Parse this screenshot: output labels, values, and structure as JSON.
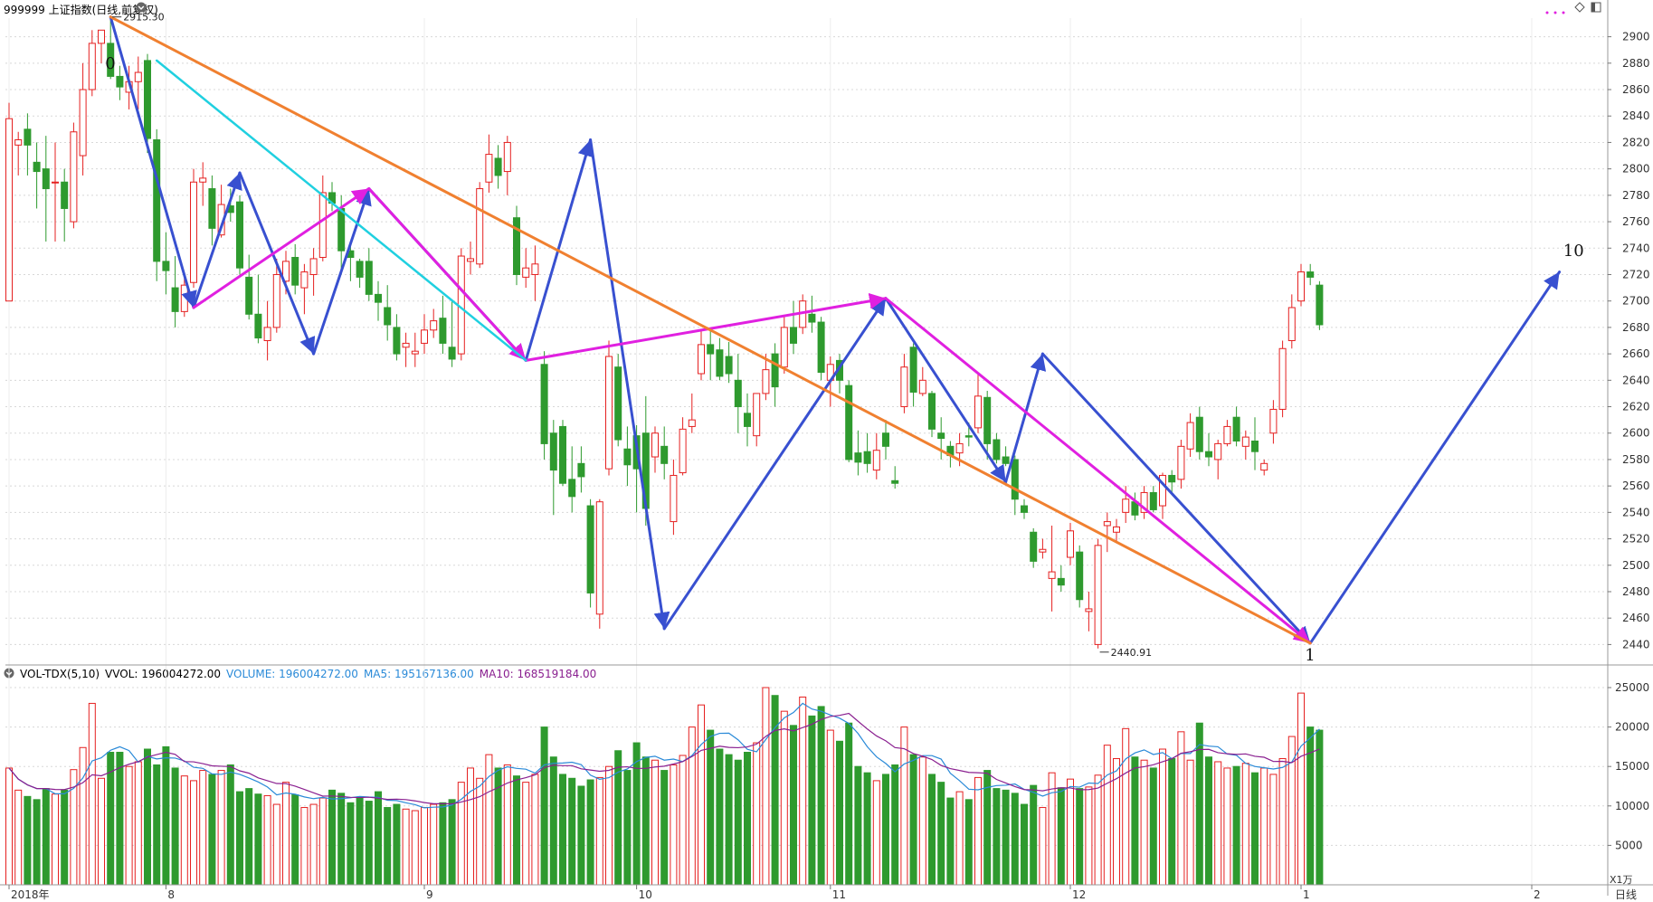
{
  "header": {
    "title": "999999 上证指数(日线,前复权)",
    "high_label": "2915.30",
    "low_label": "2440.91",
    "vol_indicator": "VOL-TDX(5,10)",
    "vvol": "VVOL: 196004272.00",
    "volume": "VOLUME: 196004272.00",
    "ma5": "MA5: 195167136.00",
    "ma10": "MA10: 168519184.00",
    "unit": "X1万",
    "period": "日线"
  },
  "colors": {
    "up": "#e52020",
    "down": "#2e9a2e",
    "wave_blue": "#3850d0",
    "wave_magenta": "#e020e0",
    "trend_cyan": "#20d0e0",
    "trend_orange": "#f08030",
    "ma5": "#2a8ad8",
    "ma10": "#8a2090"
  },
  "chart_data": {
    "type": "candlestick",
    "price_ylim": [
      2430,
      2910
    ],
    "price_ticks": [
      2440,
      2460,
      2480,
      2500,
      2520,
      2540,
      2560,
      2580,
      2600,
      2620,
      2640,
      2660,
      2680,
      2700,
      2720,
      2740,
      2760,
      2780,
      2800,
      2820,
      2840,
      2860,
      2880,
      2900
    ],
    "volume_ylim": [
      0,
      25000
    ],
    "volume_ticks": [
      5000,
      10000,
      15000,
      20000,
      25000
    ],
    "x_labels": [
      {
        "label": "2018年",
        "index": 0
      },
      {
        "label": "8",
        "index": 17
      },
      {
        "label": "9",
        "index": 45
      },
      {
        "label": "10",
        "index": 68
      },
      {
        "label": "11",
        "index": 89
      },
      {
        "label": "12",
        "index": 115
      },
      {
        "label": "1",
        "index": 140
      },
      {
        "label": "2",
        "index": 165
      }
    ],
    "candles": [
      {
        "o": 2700,
        "h": 2850,
        "l": 2700,
        "c": 2838,
        "v": 14800
      },
      {
        "o": 2818,
        "h": 2828,
        "l": 2795,
        "c": 2822,
        "v": 12000
      },
      {
        "o": 2830,
        "h": 2842,
        "l": 2795,
        "c": 2818,
        "v": 11200
      },
      {
        "o": 2805,
        "h": 2820,
        "l": 2770,
        "c": 2798,
        "v": 10800
      },
      {
        "o": 2800,
        "h": 2825,
        "l": 2745,
        "c": 2785,
        "v": 12200
      },
      {
        "o": 2790,
        "h": 2820,
        "l": 2745,
        "c": 2790,
        "v": 11500
      },
      {
        "o": 2790,
        "h": 2800,
        "l": 2745,
        "c": 2770,
        "v": 12000
      },
      {
        "o": 2760,
        "h": 2835,
        "l": 2755,
        "c": 2828,
        "v": 14600
      },
      {
        "o": 2810,
        "h": 2880,
        "l": 2795,
        "c": 2860,
        "v": 17400
      },
      {
        "o": 2860,
        "h": 2905,
        "l": 2855,
        "c": 2895,
        "v": 23000
      },
      {
        "o": 2895,
        "h": 2905,
        "l": 2880,
        "c": 2905,
        "v": 13500
      },
      {
        "o": 2895,
        "h": 2915,
        "l": 2868,
        "c": 2870,
        "v": 16800
      },
      {
        "o": 2870,
        "h": 2878,
        "l": 2852,
        "c": 2862,
        "v": 16800
      },
      {
        "o": 2858,
        "h": 2878,
        "l": 2845,
        "c": 2866,
        "v": 15000
      },
      {
        "o": 2866,
        "h": 2885,
        "l": 2845,
        "c": 2873,
        "v": 15600
      },
      {
        "o": 2882,
        "h": 2887,
        "l": 2812,
        "c": 2823,
        "v": 17200
      },
      {
        "o": 2822,
        "h": 2830,
        "l": 2715,
        "c": 2730,
        "v": 15200
      },
      {
        "o": 2730,
        "h": 2752,
        "l": 2705,
        "c": 2723,
        "v": 17500
      },
      {
        "o": 2710,
        "h": 2734,
        "l": 2680,
        "c": 2692,
        "v": 14800
      },
      {
        "o": 2692,
        "h": 2718,
        "l": 2688,
        "c": 2712,
        "v": 13800
      },
      {
        "o": 2714,
        "h": 2800,
        "l": 2710,
        "c": 2790,
        "v": 13200
      },
      {
        "o": 2790,
        "h": 2805,
        "l": 2772,
        "c": 2793,
        "v": 14500
      },
      {
        "o": 2785,
        "h": 2795,
        "l": 2742,
        "c": 2755,
        "v": 14000
      },
      {
        "o": 2750,
        "h": 2788,
        "l": 2748,
        "c": 2773,
        "v": 14500
      },
      {
        "o": 2772,
        "h": 2785,
        "l": 2760,
        "c": 2767,
        "v": 15200
      },
      {
        "o": 2775,
        "h": 2780,
        "l": 2720,
        "c": 2725,
        "v": 11800
      },
      {
        "o": 2718,
        "h": 2735,
        "l": 2686,
        "c": 2690,
        "v": 12200
      },
      {
        "o": 2690,
        "h": 2720,
        "l": 2668,
        "c": 2672,
        "v": 11500
      },
      {
        "o": 2670,
        "h": 2700,
        "l": 2655,
        "c": 2680,
        "v": 11300
      },
      {
        "o": 2680,
        "h": 2732,
        "l": 2676,
        "c": 2720,
        "v": 10200
      },
      {
        "o": 2715,
        "h": 2738,
        "l": 2705,
        "c": 2730,
        "v": 13000
      },
      {
        "o": 2733,
        "h": 2743,
        "l": 2705,
        "c": 2712,
        "v": 11400
      },
      {
        "o": 2710,
        "h": 2728,
        "l": 2690,
        "c": 2722,
        "v": 9800
      },
      {
        "o": 2720,
        "h": 2740,
        "l": 2704,
        "c": 2732,
        "v": 10200
      },
      {
        "o": 2733,
        "h": 2795,
        "l": 2730,
        "c": 2782,
        "v": 11000
      },
      {
        "o": 2782,
        "h": 2790,
        "l": 2768,
        "c": 2774,
        "v": 12000
      },
      {
        "o": 2770,
        "h": 2780,
        "l": 2720,
        "c": 2738,
        "v": 11600
      },
      {
        "o": 2738,
        "h": 2742,
        "l": 2715,
        "c": 2733,
        "v": 10400
      },
      {
        "o": 2730,
        "h": 2732,
        "l": 2710,
        "c": 2718,
        "v": 11000
      },
      {
        "o": 2730,
        "h": 2740,
        "l": 2700,
        "c": 2705,
        "v": 10600
      },
      {
        "o": 2705,
        "h": 2715,
        "l": 2685,
        "c": 2699,
        "v": 11800
      },
      {
        "o": 2695,
        "h": 2712,
        "l": 2670,
        "c": 2682,
        "v": 9800
      },
      {
        "o": 2680,
        "h": 2690,
        "l": 2655,
        "c": 2660,
        "v": 10200
      },
      {
        "o": 2665,
        "h": 2676,
        "l": 2650,
        "c": 2668,
        "v": 9600
      },
      {
        "o": 2660,
        "h": 2676,
        "l": 2650,
        "c": 2662,
        "v": 9400
      },
      {
        "o": 2668,
        "h": 2690,
        "l": 2660,
        "c": 2678,
        "v": 9800
      },
      {
        "o": 2678,
        "h": 2694,
        "l": 2672,
        "c": 2685,
        "v": 10200
      },
      {
        "o": 2687,
        "h": 2704,
        "l": 2660,
        "c": 2668,
        "v": 10400
      },
      {
        "o": 2665,
        "h": 2700,
        "l": 2650,
        "c": 2656,
        "v": 10800
      },
      {
        "o": 2660,
        "h": 2740,
        "l": 2655,
        "c": 2734,
        "v": 13000
      },
      {
        "o": 2730,
        "h": 2745,
        "l": 2720,
        "c": 2732,
        "v": 14800
      },
      {
        "o": 2728,
        "h": 2790,
        "l": 2725,
        "c": 2785,
        "v": 13500
      },
      {
        "o": 2790,
        "h": 2826,
        "l": 2782,
        "c": 2811,
        "v": 16500
      },
      {
        "o": 2808,
        "h": 2818,
        "l": 2785,
        "c": 2795,
        "v": 14800
      },
      {
        "o": 2798,
        "h": 2825,
        "l": 2780,
        "c": 2820,
        "v": 15200
      },
      {
        "o": 2763,
        "h": 2772,
        "l": 2712,
        "c": 2720,
        "v": 13800
      },
      {
        "o": 2718,
        "h": 2740,
        "l": 2710,
        "c": 2725,
        "v": 13000
      },
      {
        "o": 2720,
        "h": 2742,
        "l": 2700,
        "c": 2728,
        "v": 14000
      },
      {
        "o": 2652,
        "h": 2662,
        "l": 2580,
        "c": 2592,
        "v": 20000
      },
      {
        "o": 2600,
        "h": 2610,
        "l": 2538,
        "c": 2572,
        "v": 16200
      },
      {
        "o": 2605,
        "h": 2610,
        "l": 2560,
        "c": 2562,
        "v": 14000
      },
      {
        "o": 2565,
        "h": 2590,
        "l": 2540,
        "c": 2552,
        "v": 13500
      },
      {
        "o": 2577,
        "h": 2590,
        "l": 2555,
        "c": 2567,
        "v": 12500
      },
      {
        "o": 2545,
        "h": 2550,
        "l": 2468,
        "c": 2479,
        "v": 13300
      },
      {
        "o": 2463,
        "h": 2550,
        "l": 2452,
        "c": 2548,
        "v": 13600
      },
      {
        "o": 2573,
        "h": 2670,
        "l": 2568,
        "c": 2658,
        "v": 15000
      },
      {
        "o": 2650,
        "h": 2660,
        "l": 2590,
        "c": 2595,
        "v": 17000
      },
      {
        "o": 2588,
        "h": 2605,
        "l": 2560,
        "c": 2576,
        "v": 14500
      },
      {
        "o": 2598,
        "h": 2606,
        "l": 2540,
        "c": 2573,
        "v": 18000
      },
      {
        "o": 2600,
        "h": 2628,
        "l": 2530,
        "c": 2543,
        "v": 16200
      },
      {
        "o": 2582,
        "h": 2605,
        "l": 2570,
        "c": 2600,
        "v": 15800
      },
      {
        "o": 2590,
        "h": 2605,
        "l": 2565,
        "c": 2577,
        "v": 14500
      },
      {
        "o": 2533,
        "h": 2580,
        "l": 2523,
        "c": 2568,
        "v": 15200
      },
      {
        "o": 2570,
        "h": 2612,
        "l": 2568,
        "c": 2603,
        "v": 16400
      },
      {
        "o": 2605,
        "h": 2630,
        "l": 2600,
        "c": 2610,
        "v": 20000
      },
      {
        "o": 2645,
        "h": 2678,
        "l": 2640,
        "c": 2667,
        "v": 22800
      },
      {
        "o": 2667,
        "h": 2678,
        "l": 2640,
        "c": 2660,
        "v": 19600
      },
      {
        "o": 2663,
        "h": 2672,
        "l": 2640,
        "c": 2643,
        "v": 17200
      },
      {
        "o": 2658,
        "h": 2669,
        "l": 2638,
        "c": 2645,
        "v": 16500
      },
      {
        "o": 2640,
        "h": 2660,
        "l": 2600,
        "c": 2620,
        "v": 15800
      },
      {
        "o": 2615,
        "h": 2630,
        "l": 2590,
        "c": 2605,
        "v": 16800
      },
      {
        "o": 2598,
        "h": 2630,
        "l": 2590,
        "c": 2630,
        "v": 18000
      },
      {
        "o": 2630,
        "h": 2660,
        "l": 2625,
        "c": 2648,
        "v": 25000
      },
      {
        "o": 2660,
        "h": 2668,
        "l": 2620,
        "c": 2635,
        "v": 24000
      },
      {
        "o": 2650,
        "h": 2688,
        "l": 2645,
        "c": 2680,
        "v": 22000
      },
      {
        "o": 2680,
        "h": 2700,
        "l": 2660,
        "c": 2668,
        "v": 20200
      },
      {
        "o": 2680,
        "h": 2705,
        "l": 2675,
        "c": 2700,
        "v": 23800
      },
      {
        "o": 2690,
        "h": 2704,
        "l": 2676,
        "c": 2684,
        "v": 21400
      },
      {
        "o": 2684,
        "h": 2688,
        "l": 2640,
        "c": 2646,
        "v": 22600
      },
      {
        "o": 2640,
        "h": 2658,
        "l": 2620,
        "c": 2652,
        "v": 19600
      },
      {
        "o": 2655,
        "h": 2660,
        "l": 2630,
        "c": 2640,
        "v": 18200
      },
      {
        "o": 2636,
        "h": 2640,
        "l": 2578,
        "c": 2580,
        "v": 20500
      },
      {
        "o": 2585,
        "h": 2602,
        "l": 2568,
        "c": 2578,
        "v": 15000
      },
      {
        "o": 2586,
        "h": 2600,
        "l": 2570,
        "c": 2577,
        "v": 14200
      },
      {
        "o": 2572,
        "h": 2600,
        "l": 2565,
        "c": 2587,
        "v": 13200
      },
      {
        "o": 2600,
        "h": 2610,
        "l": 2580,
        "c": 2590,
        "v": 14000
      },
      {
        "o": 2564,
        "h": 2575,
        "l": 2558,
        "c": 2562,
        "v": 15200
      },
      {
        "o": 2620,
        "h": 2660,
        "l": 2615,
        "c": 2650,
        "v": 20000
      },
      {
        "o": 2665,
        "h": 2668,
        "l": 2620,
        "c": 2631,
        "v": 16500
      },
      {
        "o": 2630,
        "h": 2650,
        "l": 2628,
        "c": 2640,
        "v": 16200
      },
      {
        "o": 2630,
        "h": 2632,
        "l": 2597,
        "c": 2603,
        "v": 14000
      },
      {
        "o": 2600,
        "h": 2612,
        "l": 2580,
        "c": 2596,
        "v": 13000
      },
      {
        "o": 2590,
        "h": 2594,
        "l": 2574,
        "c": 2583,
        "v": 11000
      },
      {
        "o": 2585,
        "h": 2600,
        "l": 2575,
        "c": 2592,
        "v": 11800
      },
      {
        "o": 2598,
        "h": 2608,
        "l": 2590,
        "c": 2597,
        "v": 10800
      },
      {
        "o": 2604,
        "h": 2645,
        "l": 2600,
        "c": 2628,
        "v": 13600
      },
      {
        "o": 2627,
        "h": 2632,
        "l": 2580,
        "c": 2592,
        "v": 14500
      },
      {
        "o": 2595,
        "h": 2600,
        "l": 2577,
        "c": 2580,
        "v": 12200
      },
      {
        "o": 2582,
        "h": 2590,
        "l": 2575,
        "c": 2577,
        "v": 12000
      },
      {
        "o": 2580,
        "h": 2583,
        "l": 2538,
        "c": 2550,
        "v": 11600
      },
      {
        "o": 2545,
        "h": 2550,
        "l": 2535,
        "c": 2540,
        "v": 10200
      },
      {
        "o": 2525,
        "h": 2528,
        "l": 2498,
        "c": 2503,
        "v": 12600
      },
      {
        "o": 2510,
        "h": 2520,
        "l": 2505,
        "c": 2512,
        "v": 9800
      },
      {
        "o": 2490,
        "h": 2530,
        "l": 2465,
        "c": 2495,
        "v": 14200
      },
      {
        "o": 2490,
        "h": 2500,
        "l": 2480,
        "c": 2485,
        "v": 12300
      },
      {
        "o": 2506,
        "h": 2532,
        "l": 2500,
        "c": 2526,
        "v": 13400
      },
      {
        "o": 2510,
        "h": 2515,
        "l": 2468,
        "c": 2474,
        "v": 12200
      },
      {
        "o": 2465,
        "h": 2480,
        "l": 2450,
        "c": 2467,
        "v": 12400
      },
      {
        "o": 2440,
        "h": 2520,
        "l": 2437,
        "c": 2515,
        "v": 13900
      },
      {
        "o": 2530,
        "h": 2540,
        "l": 2510,
        "c": 2533,
        "v": 17700
      },
      {
        "o": 2525,
        "h": 2535,
        "l": 2518,
        "c": 2529,
        "v": 16000
      },
      {
        "o": 2540,
        "h": 2560,
        "l": 2532,
        "c": 2550,
        "v": 19800
      },
      {
        "o": 2548,
        "h": 2555,
        "l": 2534,
        "c": 2538,
        "v": 16200
      },
      {
        "o": 2540,
        "h": 2560,
        "l": 2535,
        "c": 2555,
        "v": 15800
      },
      {
        "o": 2555,
        "h": 2560,
        "l": 2540,
        "c": 2542,
        "v": 14800
      },
      {
        "o": 2545,
        "h": 2570,
        "l": 2535,
        "c": 2568,
        "v": 17200
      },
      {
        "o": 2568,
        "h": 2572,
        "l": 2555,
        "c": 2563,
        "v": 16000
      },
      {
        "o": 2565,
        "h": 2595,
        "l": 2558,
        "c": 2590,
        "v": 19400
      },
      {
        "o": 2588,
        "h": 2615,
        "l": 2582,
        "c": 2608,
        "v": 15800
      },
      {
        "o": 2612,
        "h": 2620,
        "l": 2580,
        "c": 2586,
        "v": 20500
      },
      {
        "o": 2586,
        "h": 2600,
        "l": 2575,
        "c": 2582,
        "v": 16200
      },
      {
        "o": 2580,
        "h": 2595,
        "l": 2565,
        "c": 2592,
        "v": 15600
      },
      {
        "o": 2592,
        "h": 2610,
        "l": 2590,
        "c": 2605,
        "v": 14800
      },
      {
        "o": 2612,
        "h": 2620,
        "l": 2590,
        "c": 2594,
        "v": 15000
      },
      {
        "o": 2590,
        "h": 2602,
        "l": 2580,
        "c": 2597,
        "v": 15400
      },
      {
        "o": 2594,
        "h": 2612,
        "l": 2572,
        "c": 2586,
        "v": 14200
      },
      {
        "o": 2572,
        "h": 2580,
        "l": 2568,
        "c": 2577,
        "v": 14800
      },
      {
        "o": 2600,
        "h": 2625,
        "l": 2592,
        "c": 2618,
        "v": 14000
      },
      {
        "o": 2618,
        "h": 2670,
        "l": 2612,
        "c": 2664,
        "v": 16000
      },
      {
        "o": 2670,
        "h": 2705,
        "l": 2664,
        "c": 2695,
        "v": 18800
      },
      {
        "o": 2700,
        "h": 2728,
        "l": 2696,
        "c": 2722,
        "v": 24300
      },
      {
        "o": 2722,
        "h": 2728,
        "l": 2712,
        "c": 2718,
        "v": 20000
      },
      {
        "o": 2712,
        "h": 2715,
        "l": 2678,
        "c": 2682,
        "v": 19600
      }
    ],
    "waves": [
      {
        "color": "wave_blue",
        "width": 3,
        "arrow": true,
        "points": [
          [
            11,
            2915
          ],
          [
            20,
            2695
          ],
          [
            25,
            2797
          ],
          [
            33,
            2660
          ],
          [
            39,
            2785
          ],
          [
            56,
            2655
          ],
          [
            63,
            2822
          ],
          [
            71,
            2452
          ],
          [
            95,
            2702
          ],
          [
            108,
            2563
          ],
          [
            112,
            2660
          ],
          [
            141,
            2441
          ],
          [
            168,
            2722
          ]
        ]
      },
      {
        "color": "wave_magenta",
        "width": 3,
        "arrow": true,
        "points": [
          [
            20,
            2695
          ],
          [
            39,
            2785
          ],
          [
            56,
            2655
          ],
          [
            95,
            2702
          ],
          [
            141,
            2441
          ]
        ]
      },
      {
        "color": "trend_cyan",
        "width": 2.5,
        "arrow": false,
        "points": [
          [
            16,
            2882
          ],
          [
            56,
            2655
          ]
        ]
      },
      {
        "color": "trend_orange",
        "width": 3,
        "arrow": false,
        "points": [
          [
            11,
            2915
          ],
          [
            141,
            2441
          ]
        ]
      }
    ],
    "wave_labels": [
      {
        "text": "0",
        "index": 11,
        "price": 2880
      },
      {
        "text": "1",
        "index": 141,
        "price": 2432
      },
      {
        "text": "10",
        "index": 169,
        "price": 2738
      }
    ]
  }
}
